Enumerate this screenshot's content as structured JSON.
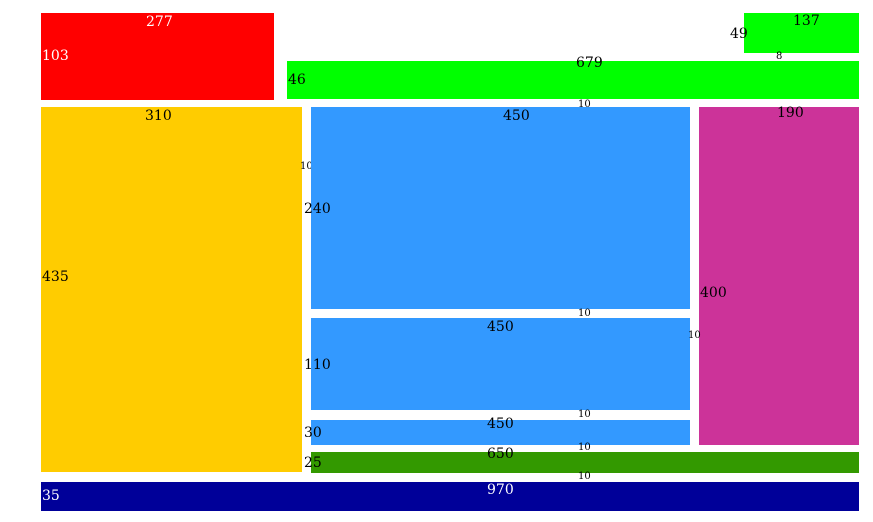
{
  "colors": {
    "red": "#ff0000",
    "bright_green": "#00ff00",
    "orange": "#ffcc00",
    "blue": "#3399ff",
    "magenta": "#cc3399",
    "dark_green": "#339900",
    "navy": "#000099"
  },
  "blocks": {
    "red": {
      "width": "277",
      "height": "103"
    },
    "green_small": {
      "width": "137",
      "height": "49"
    },
    "green_wide": {
      "width": "679",
      "height": "46"
    },
    "orange": {
      "width": "310",
      "height": "435"
    },
    "blue_top": {
      "width": "450",
      "height": "240"
    },
    "blue_mid": {
      "width": "450",
      "height": "110"
    },
    "blue_bottom": {
      "width": "450",
      "height": "30"
    },
    "magenta": {
      "width": "190",
      "height": "400"
    },
    "dark_green": {
      "width": "650",
      "height": "25"
    },
    "navy": {
      "width": "970",
      "height": "35"
    }
  },
  "gaps": {
    "g8": "8",
    "g10_a": "10",
    "g10_b": "10",
    "g10_c": "10",
    "g10_d": "10",
    "g10_e": "10",
    "g10_f": "10",
    "g10_g": "10"
  }
}
